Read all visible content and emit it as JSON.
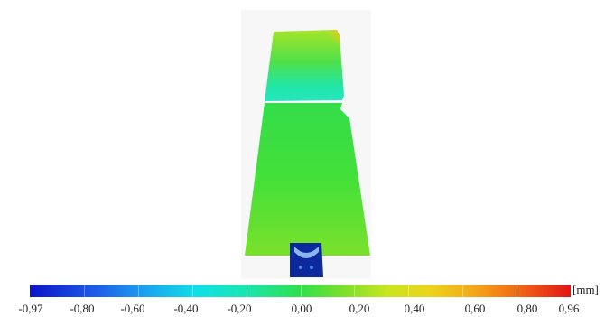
{
  "colorbar": {
    "unit": "[mm]",
    "tick_labels": [
      "-0,97",
      "-0,80",
      "-0,60",
      "-0,40",
      "-0,20",
      "0,00",
      "0,20",
      "0,40",
      "0,60",
      "0,80",
      "0,96"
    ],
    "min": -0.97,
    "max": 0.96,
    "colors": [
      "#0a14c8",
      "#1aa6f0",
      "#10e0e6",
      "#2fe04a",
      "#c8e61e",
      "#f4a818",
      "#e01414"
    ]
  }
}
